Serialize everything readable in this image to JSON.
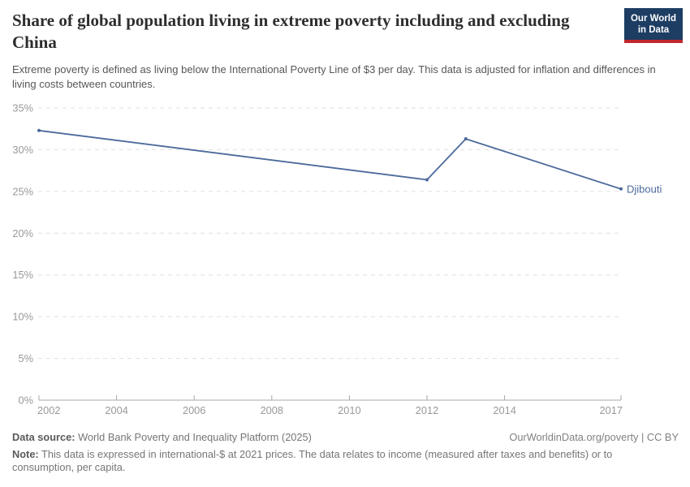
{
  "header": {
    "logo": {
      "line1": "Our World",
      "line2": "in Data"
    }
  },
  "chart_data": {
    "type": "line",
    "title": "Share of global population living in extreme poverty including and excluding China",
    "subtitle": "Extreme poverty is defined as living below the International Poverty Line of $3 per day. This data is adjusted for inflation and differences in living costs between countries.",
    "xlabel": "",
    "ylabel": "",
    "xlim": [
      2002,
      2017
    ],
    "ylim": [
      0,
      35
    ],
    "x_ticks": [
      "2002",
      "2004",
      "2006",
      "2008",
      "2010",
      "2012",
      "2014",
      "2017"
    ],
    "y_ticks": [
      0,
      5,
      10,
      15,
      20,
      25,
      30,
      35
    ],
    "y_tick_suffix": "%",
    "grid": "horizontal-dashed",
    "legend": "direct-line-label",
    "series": [
      {
        "name": "Djibouti",
        "color": "#4c6a9c",
        "points": [
          [
            2002,
            32.3
          ],
          [
            2012,
            26.4
          ],
          [
            2013,
            31.3
          ],
          [
            2017,
            25.3
          ]
        ]
      }
    ]
  },
  "footer": {
    "source_label": "Data source:",
    "source_value": " World Bank Poverty and Inequality Platform (2025)",
    "license": "OurWorldinData.org/poverty | CC BY",
    "note_label": "Note:",
    "note_value": " This data is expressed in international-$ at 2021 prices. The data relates to income (measured after taxes and benefits) or to consumption, per capita."
  },
  "colors": {
    "series_line": "#4c6a9c",
    "gridline": "#e0e0e0",
    "axis_line": "#a8a8a8",
    "tick_label": "#999999",
    "title_text": "#2e2e2e",
    "subtitle_text": "#575757",
    "logo_background": "#1d3d63",
    "logo_stripe": "#c2272e"
  }
}
